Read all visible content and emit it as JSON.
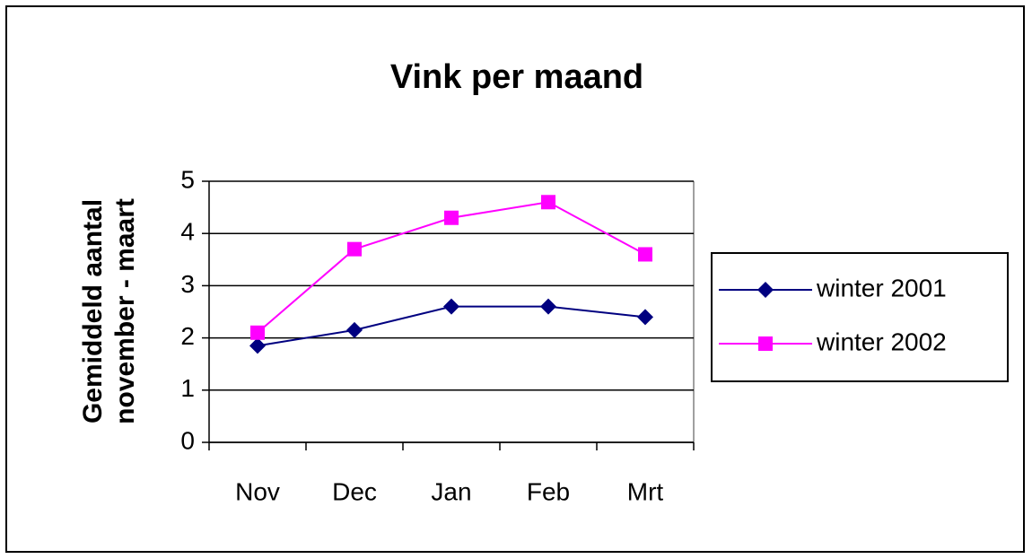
{
  "chart_data": {
    "type": "line",
    "title": "Vink per maand",
    "y_label": [
      "Gemiddeld aantal",
      "november - maart"
    ],
    "categories": [
      "Nov",
      "Dec",
      "Jan",
      "Feb",
      "Mrt"
    ],
    "series": [
      {
        "name": "winter 2001",
        "color": "#000080",
        "marker": "diamond",
        "values": [
          1.85,
          2.15,
          2.6,
          2.6,
          2.4
        ]
      },
      {
        "name": "winter 2002",
        "color": "#ff00ff",
        "marker": "square",
        "values": [
          2.1,
          3.7,
          4.3,
          4.6,
          3.6
        ]
      }
    ],
    "ylim": [
      0,
      5
    ],
    "yticks": [
      0,
      1,
      2,
      3,
      4,
      5
    ],
    "grid": true,
    "legend": "right"
  }
}
